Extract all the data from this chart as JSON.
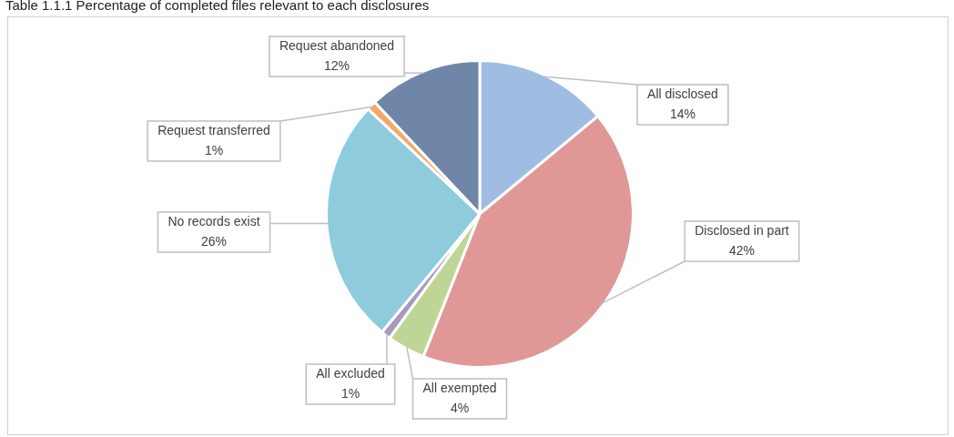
{
  "chart_data": {
    "type": "pie",
    "title": "Table 1.1.1 Percentage of completed files relevant to each disclosures",
    "categories": [
      "All disclosed",
      "Disclosed in part",
      "All exempted",
      "All excluded",
      "No records exist",
      "Request transferred",
      "Request abandoned"
    ],
    "values": [
      14,
      42,
      4,
      1,
      26,
      1,
      12
    ],
    "value_labels": [
      "14%",
      "42%",
      "4%",
      "1%",
      "26%",
      "1%",
      "12%"
    ],
    "colors": [
      "#9fbde3",
      "#e09896",
      "#bed596",
      "#a898c4",
      "#8ecbdc",
      "#f5a866",
      "#6f86a8"
    ],
    "legend": false
  }
}
